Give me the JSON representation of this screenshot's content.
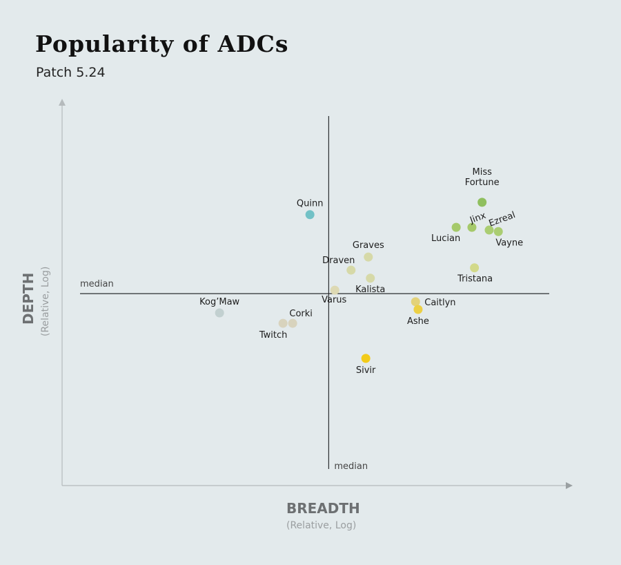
{
  "chart_data": {
    "type": "scatter",
    "title": "Popularity of ADCs",
    "subtitle": "Patch 5.24",
    "xlabel": "BREADTH",
    "xlabel_sub": "(Relative, Log)",
    "ylabel": "DEPTH",
    "ylabel_sub": "(Relative, Log)",
    "xlim": [
      0,
      1
    ],
    "ylim": [
      0,
      1
    ],
    "grid": false,
    "median": {
      "x": 0.525,
      "y": 0.498,
      "x_label": "median",
      "y_label": "median"
    },
    "points": [
      {
        "name": "Quinn",
        "label": [
          "Quinn"
        ],
        "x": 0.488,
        "y": 0.703,
        "color": "#72c1c6"
      },
      {
        "name": "Miss Fortune",
        "label": [
          "Miss",
          "Fortune"
        ],
        "x": 0.827,
        "y": 0.735,
        "color": "#8fbf5e"
      },
      {
        "name": "Lucian",
        "label": [
          "Lucian"
        ],
        "x": 0.776,
        "y": 0.67,
        "color": "#a5c96a"
      },
      {
        "name": "Jinx",
        "label": [
          "Jinx"
        ],
        "x": 0.807,
        "y": 0.67,
        "color": "#a5c96a"
      },
      {
        "name": "Ezreal",
        "label": [
          "Ezreal"
        ],
        "x": 0.841,
        "y": 0.663,
        "color": "#aacd72"
      },
      {
        "name": "Vayne",
        "label": [
          "Vayne"
        ],
        "x": 0.859,
        "y": 0.659,
        "color": "#aacd72"
      },
      {
        "name": "Tristana",
        "label": [
          "Tristana"
        ],
        "x": 0.812,
        "y": 0.565,
        "color": "#d2d98a"
      },
      {
        "name": "Graves",
        "label": [
          "Graves"
        ],
        "x": 0.603,
        "y": 0.593,
        "color": "#d6d9a8"
      },
      {
        "name": "Draven",
        "label": [
          "Draven"
        ],
        "x": 0.569,
        "y": 0.559,
        "color": "#d6d9a8"
      },
      {
        "name": "Kalista",
        "label": [
          "Kalista"
        ],
        "x": 0.607,
        "y": 0.538,
        "color": "#d6d9a8"
      },
      {
        "name": "Varus",
        "label": [
          "Varus"
        ],
        "x": 0.537,
        "y": 0.507,
        "color": "#ddd9b3"
      },
      {
        "name": "Caitlyn",
        "label": [
          "Caitlyn"
        ],
        "x": 0.696,
        "y": 0.477,
        "color": "#e3d27a"
      },
      {
        "name": "Ashe",
        "label": [
          "Ashe"
        ],
        "x": 0.701,
        "y": 0.457,
        "color": "#ecd045"
      },
      {
        "name": "Kog'Maw",
        "label": [
          "Kog’Maw"
        ],
        "x": 0.31,
        "y": 0.448,
        "color": "#c2d0d0"
      },
      {
        "name": "Corki",
        "label": [
          "Corki"
        ],
        "x": 0.454,
        "y": 0.421,
        "color": "#d8d3bd"
      },
      {
        "name": "Twitch",
        "label": [
          "Twitch"
        ],
        "x": 0.435,
        "y": 0.421,
        "color": "#d8d3bd"
      },
      {
        "name": "Sivir",
        "label": [
          "Sivir"
        ],
        "x": 0.598,
        "y": 0.33,
        "color": "#f2cb1a"
      }
    ]
  }
}
